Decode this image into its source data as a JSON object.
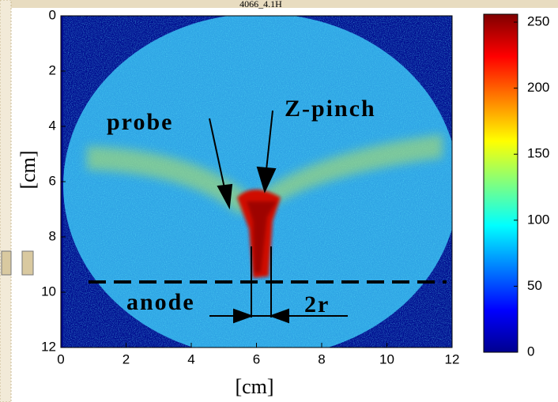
{
  "chart_data": {
    "type": "image",
    "title": "4066_4.1H",
    "xlabel": "[cm]",
    "ylabel": "[cm]",
    "xlim": [
      0,
      12
    ],
    "xticks": [
      0,
      2,
      4,
      6,
      8,
      10,
      12
    ],
    "ylim": [
      12,
      0
    ],
    "yticks": [
      0,
      2,
      4,
      6,
      8,
      10,
      12
    ],
    "colorbar": {
      "colormap": "jet",
      "clim": [
        0,
        256
      ],
      "ticks": [
        0,
        50,
        100,
        150,
        200,
        250
      ]
    },
    "annotations": [
      "probe",
      "Z-pinch",
      "anode",
      "2r"
    ]
  }
}
